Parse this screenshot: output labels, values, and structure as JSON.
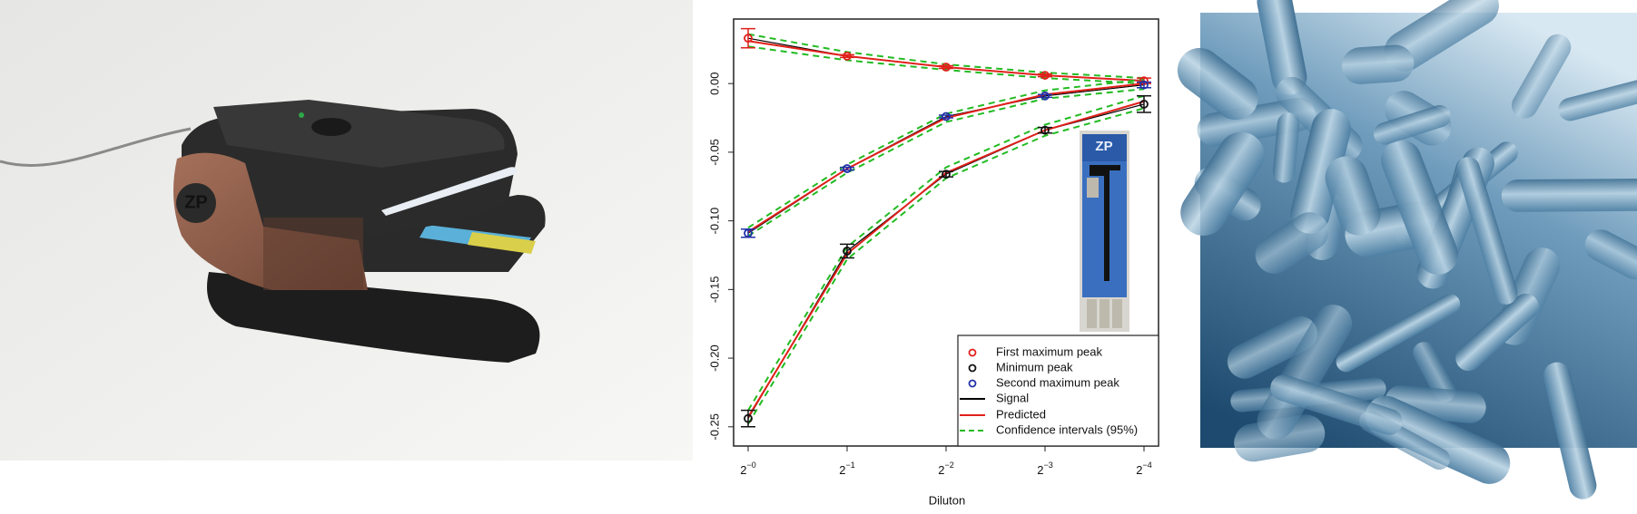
{
  "images": {
    "device_logo": "ZP",
    "sensor_logo": "ZP"
  },
  "chart_data": {
    "type": "line",
    "xlabel": "Diluton",
    "categories": [
      {
        "base": "2",
        "exponent": "−0"
      },
      {
        "base": "2",
        "exponent": "−1"
      },
      {
        "base": "2",
        "exponent": "−2"
      },
      {
        "base": "2",
        "exponent": "−3"
      },
      {
        "base": "2",
        "exponent": "−4"
      }
    ],
    "ylim": [
      -0.264,
      0.047
    ],
    "yticks": [
      {
        "value": 0,
        "label": "0.00"
      },
      {
        "value": -0.05,
        "label": "-0.05"
      },
      {
        "value": -0.1,
        "label": "-0.10"
      },
      {
        "value": -0.15,
        "label": "-0.15"
      },
      {
        "value": -0.2,
        "label": "-0.20"
      },
      {
        "value": -0.25,
        "label": "-0.25"
      }
    ],
    "series": [
      {
        "name": "First maximum peak",
        "color": "#e0201b",
        "values": [
          0.033,
          0.02,
          0.012,
          0.006,
          0.002
        ],
        "errors": [
          0.007,
          0.001,
          0.001,
          0.001,
          0.002
        ]
      },
      {
        "name": "Minimum peak",
        "color": "#111111",
        "values": [
          -0.244,
          -0.122,
          -0.066,
          -0.034,
          -0.015
        ],
        "errors": [
          0.006,
          0.005,
          0.002,
          0.002,
          0.006
        ]
      },
      {
        "name": "Second maximum peak",
        "color": "#2231a8",
        "values": [
          -0.109,
          -0.062,
          -0.024,
          -0.009,
          -0.001
        ],
        "errors": [
          0.003,
          0.001,
          0.001,
          0.001,
          0.002
        ]
      }
    ],
    "lines": [
      {
        "name": "Signal",
        "color": "#000000"
      },
      {
        "name": "Predicted",
        "color": "#e0201b"
      },
      {
        "name": "Confidence intervals (95%)",
        "color": "#22bb22",
        "dashed": true
      }
    ],
    "fits": [
      {
        "predicted": [
          0.031,
          0.02,
          0.012,
          0.006,
          0.002
        ],
        "lower": [
          0.027,
          0.017,
          0.01,
          0.004,
          0.0
        ],
        "upper": [
          0.036,
          0.023,
          0.014,
          0.008,
          0.004
        ]
      },
      {
        "predicted": [
          -0.108,
          -0.062,
          -0.025,
          -0.008,
          0.0
        ],
        "lower": [
          -0.111,
          -0.065,
          -0.028,
          -0.011,
          -0.004
        ],
        "upper": [
          -0.105,
          -0.059,
          -0.022,
          -0.005,
          0.003
        ]
      },
      {
        "predicted": [
          -0.243,
          -0.124,
          -0.065,
          -0.034,
          -0.013
        ],
        "lower": [
          -0.248,
          -0.128,
          -0.069,
          -0.038,
          -0.018
        ],
        "upper": [
          -0.238,
          -0.119,
          -0.061,
          -0.03,
          -0.009
        ]
      }
    ]
  }
}
